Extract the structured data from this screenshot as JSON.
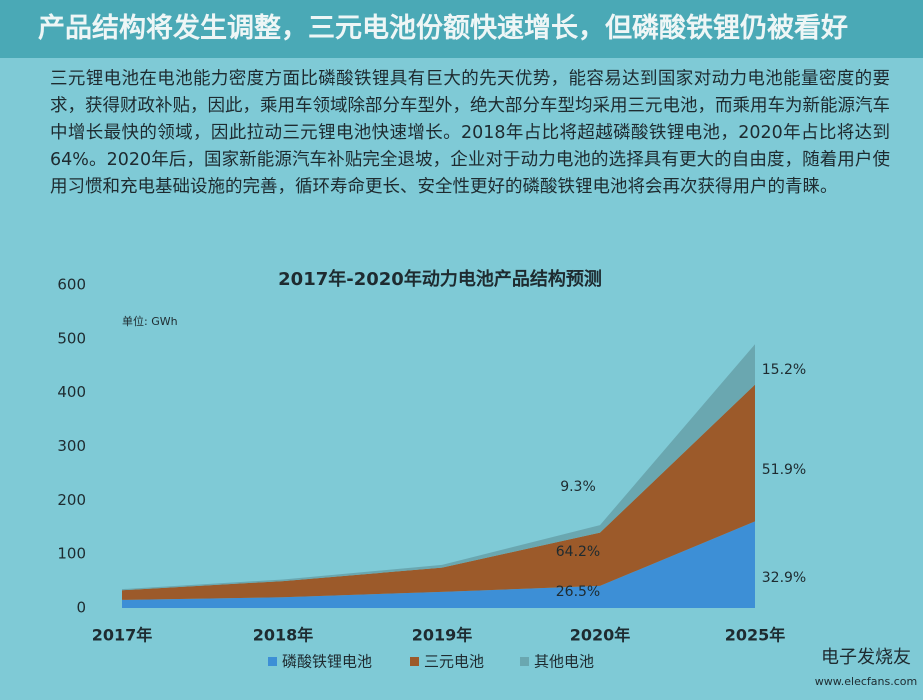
{
  "header": {
    "title": "产品结构将发生调整，三元电池份额快速增长，但磷酸铁锂仍被看好"
  },
  "body": {
    "paragraph": "三元锂电池在电池能力密度方面比磷酸铁锂具有巨大的先天优势，能容易达到国家对动力电池能量密度的要求，获得财政补贴，因此，乘用车领域除部分车型外，绝大部分车型均采用三元电池，而乘用车为新能源汽车中增长最快的领域，因此拉动三元锂电池快速增长。2018年占比将超越磷酸铁锂电池，2020年占比将达到64%。2020年后，国家新能源汽车补贴完全退坡，企业对于动力电池的选择具有更大的自由度，随着用户使用习惯和充电基础设施的完善，循环寿命更长、安全性更好的磷酸铁锂电池将会再次获得用户的青睐。"
  },
  "watermark": {
    "brand": "电子发烧友",
    "url": "www.elecfans.com"
  },
  "chart_data": {
    "type": "stacked_area",
    "title": "2017年-2020年动力电池产品结构预测",
    "unit": "单位: GWh",
    "categories": [
      "2017年",
      "2018年",
      "2019年",
      "2020年",
      "2025年"
    ],
    "series": [
      {
        "name": "磷酸铁锂电池",
        "color": "#3d8fd6",
        "values": [
          15,
          20,
          30,
          41,
          161
        ]
      },
      {
        "name": "三元电池",
        "color": "#9c5a2a",
        "values": [
          18,
          30,
          45,
          99,
          254
        ]
      },
      {
        "name": "其他电池",
        "color": "#6aa7b0",
        "values": [
          2,
          3,
          5,
          14,
          75
        ]
      }
    ],
    "annotations": [
      "9.3%",
      "64.2%",
      "26.5%",
      "15.2%",
      "51.9%",
      "32.9%"
    ],
    "ylim": [
      0,
      600
    ],
    "yticks": [
      0,
      100,
      200,
      300,
      400,
      500,
      600
    ],
    "grid": false,
    "legend": "bottom"
  }
}
